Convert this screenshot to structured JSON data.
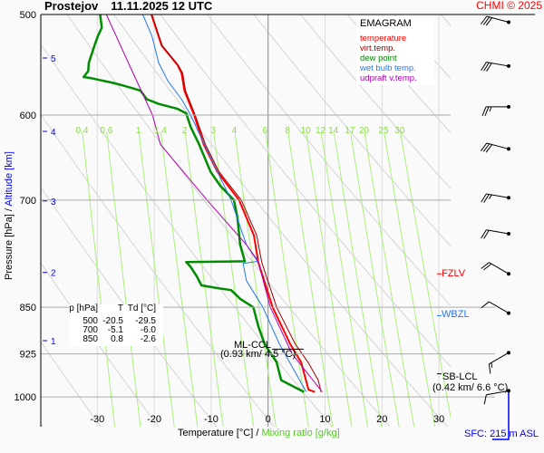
{
  "header": {
    "station": "Prostejov",
    "datetime": "11.11.2025 12 UTC",
    "copyright": "CHMI © 2025"
  },
  "legend": {
    "title": "EMAGRAM",
    "items": [
      {
        "label": "temperature",
        "color": "#ff0000"
      },
      {
        "label": "virt.temp.",
        "color": "#a00000"
      },
      {
        "label": "dew point",
        "color": "#008c00"
      },
      {
        "label": "wet bulb temp.",
        "color": "#2277ee"
      },
      {
        "label": "udpraft v.temp.",
        "color": "#b000b0"
      }
    ]
  },
  "table": {
    "headers": [
      "p [hPa]",
      "T",
      "Td [°C]"
    ],
    "rows": [
      [
        "500",
        "-20.5",
        "-29.5"
      ],
      [
        "700",
        "-5.1",
        "-6.0"
      ],
      [
        "850",
        "0.8",
        "-2.6"
      ]
    ]
  },
  "levels": {
    "fzlv": {
      "label": "FZLV",
      "color": "#ff0000"
    },
    "wbzl": {
      "label": "WBZL",
      "color": "#2277ee"
    },
    "ml_ccl": {
      "label": "ML-CCL",
      "detail": "(0.93 km/ 4.5 °C)"
    },
    "sb_lcl": {
      "label": "SB-LCL",
      "detail": "(0.42 km/ 6.6 °C)"
    }
  },
  "surface": {
    "label": "SFC: 215 m ASL",
    "color": "#0000ff"
  },
  "chart_data": {
    "type": "line",
    "xlabel": "Temperature [°C]",
    "xlabel_sep": "/",
    "xlabel2": "Mixing ratio [g/kg]",
    "ylabel": "Pressure [hPa]",
    "ylabel_sep": "/",
    "ylabel2": "Altitude [km]",
    "xlim": [
      -40,
      32
    ],
    "ylim": [
      500,
      1050
    ],
    "y_scale": "log",
    "x_ticks": [
      "-30",
      "-20",
      "-10",
      "0",
      "10",
      "20",
      "30"
    ],
    "y_ticks": [
      "500",
      "600",
      "700",
      "850",
      "925",
      "1000"
    ],
    "altitude_ticks": [
      {
        "km": "5",
        "p": 541
      },
      {
        "km": "4",
        "p": 618
      },
      {
        "km": "3",
        "p": 701
      },
      {
        "km": "2",
        "p": 798
      },
      {
        "km": "1",
        "p": 903
      }
    ],
    "mixing_ratio_labels": [
      "0.4",
      "0.6",
      "1",
      "1.4",
      "2",
      "3",
      "4",
      "6",
      "8",
      "10",
      "12",
      "14",
      "17",
      "20",
      "25",
      "30"
    ],
    "series": [
      {
        "name": "temperature",
        "color": "#ff0000",
        "p": [
          500,
          529,
          548,
          556,
          574,
          600,
          633,
          665,
          700,
          746,
          784,
          850,
          909,
          939,
          987,
          991
        ],
        "t": [
          -20.5,
          -18.7,
          -15.9,
          -15.2,
          -14.7,
          -13.0,
          -11.3,
          -8.9,
          -5.1,
          -2.5,
          -1.7,
          0.8,
          3.9,
          5.8,
          7.1,
          8.2
        ]
      },
      {
        "name": "virt.temp.",
        "color": "#a00000",
        "p": [
          500,
          529,
          548,
          556,
          574,
          600,
          633,
          665,
          700,
          746,
          784,
          850,
          909,
          939,
          970,
          991
        ],
        "t": [
          -20.4,
          -18.6,
          -15.8,
          -15.0,
          -14.5,
          -12.8,
          -11.0,
          -8.6,
          -4.7,
          -2.0,
          -1.1,
          1.5,
          4.8,
          7.0,
          8.8,
          9.3
        ]
      },
      {
        "name": "dew point",
        "color": "#008c00",
        "p": [
          500,
          512,
          520,
          529,
          546,
          554,
          560,
          561,
          563,
          566,
          569,
          572,
          574,
          583,
          588,
          593,
          598,
          613,
          633,
          665,
          682,
          700,
          722,
          759,
          782,
          783,
          790,
          804,
          817,
          821,
          824,
          837,
          850,
          880,
          909,
          939,
          970,
          991
        ],
        "t": [
          -29.5,
          -29.2,
          -29.9,
          -30.5,
          -31.5,
          -31.6,
          -32.4,
          -31.2,
          -29.6,
          -27.2,
          -25.3,
          -23.5,
          -22.4,
          -21.3,
          -19.2,
          -16.0,
          -14.4,
          -13.6,
          -12.1,
          -10.1,
          -8.4,
          -6.0,
          -5.4,
          -4.9,
          -4.1,
          -14.4,
          -13.6,
          -12.5,
          -11.7,
          -8.9,
          -6.5,
          -4.9,
          -2.6,
          -1.7,
          -0.6,
          1.5,
          2.3,
          6.3
        ]
      },
      {
        "name": "wet bulb temp.",
        "color": "#2277ee",
        "p": [
          500,
          520,
          546,
          564,
          583,
          600,
          633,
          700,
          759,
          782,
          785,
          810,
          850,
          909,
          991
        ],
        "t": [
          -22.0,
          -20.4,
          -19.2,
          -17.6,
          -15.2,
          -13.6,
          -11.2,
          -6.5,
          -3.8,
          -1.7,
          -4.4,
          -3.8,
          -0.9,
          2.0,
          6.7
        ]
      },
      {
        "name": "udpraft v.temp.",
        "color": "#b000b0",
        "p": [
          500,
          550,
          600,
          633,
          700,
          759,
          784,
          850,
          925,
          991
        ],
        "t": [
          -28.4,
          -24.2,
          -20.3,
          -18.9,
          -10.7,
          -3.8,
          -1.7,
          0.4,
          4.2,
          9.5
        ]
      }
    ],
    "markers": {
      "fzlv_p": 800,
      "wbzl_p": 863,
      "ml_ccl_p": 917,
      "sb_lcl_p": 959,
      "surface_p": 991
    },
    "wind": [
      {
        "p": 507,
        "dir": 285,
        "kt": 30
      },
      {
        "p": 549,
        "dir": 280,
        "kt": 30
      },
      {
        "p": 591,
        "dir": 270,
        "kt": 25
      },
      {
        "p": 638,
        "dir": 285,
        "kt": 30
      },
      {
        "p": 697,
        "dir": 280,
        "kt": 25
      },
      {
        "p": 744,
        "dir": 280,
        "kt": 20
      },
      {
        "p": 800,
        "dir": 300,
        "kt": 20
      },
      {
        "p": 859,
        "dir": 300,
        "kt": 10
      },
      {
        "p": 923,
        "dir": 240,
        "kt": 15
      },
      {
        "p": 989,
        "dir": 260,
        "kt": 10
      }
    ],
    "grid": true
  }
}
